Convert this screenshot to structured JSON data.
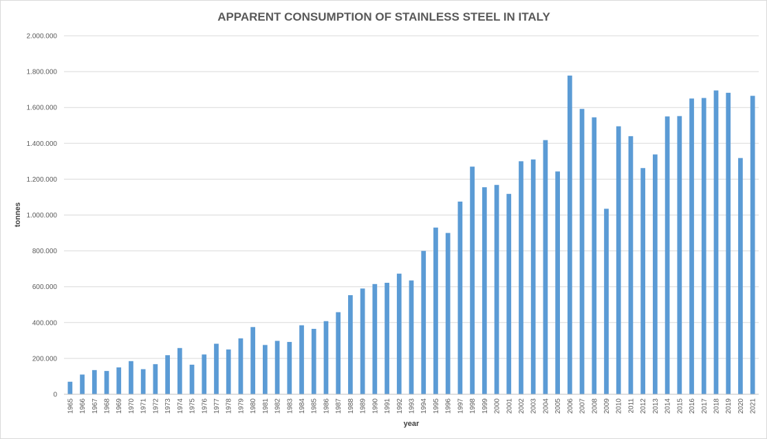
{
  "chart_data": {
    "type": "bar",
    "title": "APPARENT CONSUMPTION OF STAINLESS STEEL IN ITALY",
    "xlabel": "year",
    "ylabel": "tonnes",
    "ylim": [
      0,
      2000000
    ],
    "y_ticks": [
      0,
      200000,
      400000,
      600000,
      800000,
      1000000,
      1200000,
      1400000,
      1600000,
      1800000,
      2000000
    ],
    "y_tick_labels": [
      "0",
      "200.000",
      "400.000",
      "600.000",
      "800.000",
      "1.000.000",
      "1.200.000",
      "1.400.000",
      "1.600.000",
      "1.800.000",
      "2.000.000"
    ],
    "grid": true,
    "legend": "none",
    "bar_color": "#5b9bd5",
    "categories": [
      "1965",
      "1966",
      "1967",
      "1968",
      "1969",
      "1970",
      "1971",
      "1972",
      "1973",
      "1974",
      "1975",
      "1976",
      "1977",
      "1978",
      "1979",
      "1980",
      "1981",
      "1982",
      "1983",
      "1984",
      "1985",
      "1986",
      "1987",
      "1988",
      "1989",
      "1990",
      "1991",
      "1992",
      "1993",
      "1994",
      "1995",
      "1996",
      "1997",
      "1998",
      "1999",
      "2000",
      "2001",
      "2002",
      "2003",
      "2004",
      "2005",
      "2006",
      "2007",
      "2008",
      "2009",
      "2010",
      "2011",
      "2012",
      "2013",
      "2014",
      "2015",
      "2016",
      "2017",
      "2018",
      "2019",
      "2020",
      "2021"
    ],
    "values": [
      70000,
      110000,
      135000,
      130000,
      150000,
      185000,
      140000,
      168000,
      218000,
      258000,
      165000,
      222000,
      282000,
      250000,
      312000,
      375000,
      275000,
      298000,
      292000,
      385000,
      365000,
      408000,
      458000,
      553000,
      590000,
      615000,
      622000,
      673000,
      635000,
      800000,
      930000,
      900000,
      1075000,
      1270000,
      1155000,
      1168000,
      1118000,
      1300000,
      1310000,
      1418000,
      1243000,
      1778000,
      1592000,
      1545000,
      1035000,
      1495000,
      1440000,
      1262000,
      1338000,
      1550000,
      1552000,
      1650000,
      1653000,
      1695000,
      1682000,
      1318000,
      1665000
    ]
  }
}
